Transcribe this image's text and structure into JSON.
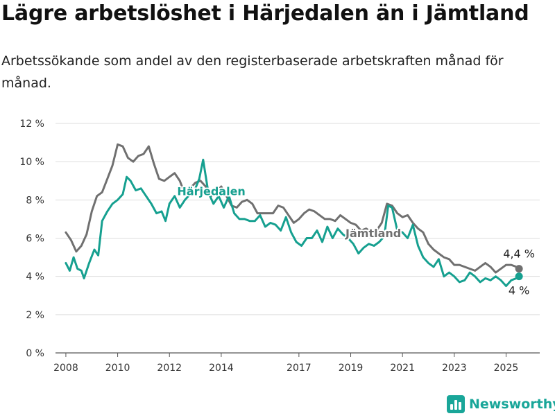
{
  "header": {
    "title": "Lägre arbetslöshet i Härjedalen än i Jämtland",
    "subtitle": "Arbetssökande som andel av den registerbaserade arbetskraften månad för månad."
  },
  "brand": {
    "name": "Newsworthy",
    "icon": "bar-chart-icon",
    "color": "#19a699"
  },
  "chart_data": {
    "type": "line",
    "title": "Lägre arbetslöshet i Härjedalen än i Jämtland",
    "subtitle": "Arbetssökande som andel av den registerbaserade arbetskraften månad för månad.",
    "xlabel": "",
    "ylabel": "",
    "xlim": [
      2007.6,
      2026.3
    ],
    "ylim": [
      0,
      12
    ],
    "x_ticks": [
      2008,
      2010,
      2012,
      2014,
      2017,
      2019,
      2021,
      2023,
      2025
    ],
    "x_tick_labels": [
      "2008",
      "2010",
      "2012",
      "2014",
      "2017",
      "2019",
      "2021",
      "2023",
      "2025"
    ],
    "y_ticks": [
      0,
      2,
      4,
      6,
      8,
      10,
      12
    ],
    "y_tick_labels": [
      "0 %",
      "2 %",
      "4 %",
      "6 %",
      "8 %",
      "10 %",
      "12 %"
    ],
    "grid": true,
    "legend": "inline labels",
    "series": [
      {
        "name": "Jämtland",
        "color": "#707070",
        "end_label": "4,4 %",
        "points": [
          [
            2008.0,
            6.3
          ],
          [
            2008.2,
            5.9
          ],
          [
            2008.4,
            5.3
          ],
          [
            2008.6,
            5.6
          ],
          [
            2008.8,
            6.2
          ],
          [
            2009.0,
            7.4
          ],
          [
            2009.2,
            8.2
          ],
          [
            2009.4,
            8.4
          ],
          [
            2009.6,
            9.1
          ],
          [
            2009.8,
            9.8
          ],
          [
            2010.0,
            10.9
          ],
          [
            2010.2,
            10.8
          ],
          [
            2010.4,
            10.2
          ],
          [
            2010.6,
            10.0
          ],
          [
            2010.8,
            10.3
          ],
          [
            2011.0,
            10.4
          ],
          [
            2011.2,
            10.8
          ],
          [
            2011.4,
            9.9
          ],
          [
            2011.6,
            9.1
          ],
          [
            2011.8,
            9.0
          ],
          [
            2012.0,
            9.2
          ],
          [
            2012.2,
            9.4
          ],
          [
            2012.4,
            9.0
          ],
          [
            2012.6,
            8.3
          ],
          [
            2012.8,
            8.6
          ],
          [
            2013.0,
            8.9
          ],
          [
            2013.2,
            9.0
          ],
          [
            2013.4,
            8.7
          ],
          [
            2013.6,
            8.2
          ],
          [
            2013.8,
            8.4
          ],
          [
            2014.0,
            8.7
          ],
          [
            2014.2,
            8.2
          ],
          [
            2014.4,
            7.7
          ],
          [
            2014.6,
            7.6
          ],
          [
            2014.8,
            7.9
          ],
          [
            2015.0,
            8.0
          ],
          [
            2015.2,
            7.8
          ],
          [
            2015.4,
            7.3
          ],
          [
            2015.6,
            7.3
          ],
          [
            2015.8,
            7.3
          ],
          [
            2016.0,
            7.3
          ],
          [
            2016.2,
            7.7
          ],
          [
            2016.4,
            7.6
          ],
          [
            2016.6,
            7.2
          ],
          [
            2016.8,
            6.8
          ],
          [
            2017.0,
            7.0
          ],
          [
            2017.2,
            7.3
          ],
          [
            2017.4,
            7.5
          ],
          [
            2017.6,
            7.4
          ],
          [
            2017.8,
            7.2
          ],
          [
            2018.0,
            7.0
          ],
          [
            2018.2,
            7.0
          ],
          [
            2018.4,
            6.9
          ],
          [
            2018.6,
            7.2
          ],
          [
            2018.8,
            7.0
          ],
          [
            2019.0,
            6.8
          ],
          [
            2019.2,
            6.7
          ],
          [
            2019.4,
            6.4
          ],
          [
            2019.6,
            6.5
          ],
          [
            2019.8,
            6.3
          ],
          [
            2020.0,
            6.4
          ],
          [
            2020.2,
            6.8
          ],
          [
            2020.4,
            7.8
          ],
          [
            2020.6,
            7.7
          ],
          [
            2020.8,
            7.3
          ],
          [
            2021.0,
            7.1
          ],
          [
            2021.2,
            7.2
          ],
          [
            2021.4,
            6.8
          ],
          [
            2021.6,
            6.5
          ],
          [
            2021.8,
            6.3
          ],
          [
            2022.0,
            5.7
          ],
          [
            2022.2,
            5.4
          ],
          [
            2022.4,
            5.2
          ],
          [
            2022.6,
            5.0
          ],
          [
            2022.8,
            4.9
          ],
          [
            2023.0,
            4.6
          ],
          [
            2023.2,
            4.6
          ],
          [
            2023.4,
            4.5
          ],
          [
            2023.6,
            4.4
          ],
          [
            2023.8,
            4.3
          ],
          [
            2024.0,
            4.5
          ],
          [
            2024.2,
            4.7
          ],
          [
            2024.4,
            4.5
          ],
          [
            2024.6,
            4.2
          ],
          [
            2024.8,
            4.4
          ],
          [
            2025.0,
            4.6
          ],
          [
            2025.2,
            4.6
          ],
          [
            2025.4,
            4.5
          ],
          [
            2025.5,
            4.4
          ]
        ]
      },
      {
        "name": "Härjedalen",
        "color": "#16a090",
        "end_label": "4 %",
        "points": [
          [
            2008.0,
            4.7
          ],
          [
            2008.15,
            4.3
          ],
          [
            2008.3,
            5.0
          ],
          [
            2008.45,
            4.4
          ],
          [
            2008.6,
            4.3
          ],
          [
            2008.7,
            3.9
          ],
          [
            2008.9,
            4.7
          ],
          [
            2009.1,
            5.4
          ],
          [
            2009.25,
            5.1
          ],
          [
            2009.4,
            6.9
          ],
          [
            2009.6,
            7.4
          ],
          [
            2009.8,
            7.8
          ],
          [
            2010.0,
            8.0
          ],
          [
            2010.2,
            8.3
          ],
          [
            2010.35,
            9.2
          ],
          [
            2010.5,
            9.0
          ],
          [
            2010.7,
            8.5
          ],
          [
            2010.9,
            8.6
          ],
          [
            2011.1,
            8.2
          ],
          [
            2011.3,
            7.8
          ],
          [
            2011.5,
            7.3
          ],
          [
            2011.7,
            7.4
          ],
          [
            2011.85,
            6.9
          ],
          [
            2012.0,
            7.8
          ],
          [
            2012.2,
            8.2
          ],
          [
            2012.4,
            7.6
          ],
          [
            2012.6,
            8.0
          ],
          [
            2012.8,
            8.3
          ],
          [
            2013.0,
            8.6
          ],
          [
            2013.15,
            9.1
          ],
          [
            2013.3,
            10.1
          ],
          [
            2013.5,
            8.4
          ],
          [
            2013.7,
            7.8
          ],
          [
            2013.9,
            8.2
          ],
          [
            2014.1,
            7.6
          ],
          [
            2014.3,
            8.2
          ],
          [
            2014.5,
            7.3
          ],
          [
            2014.7,
            7.0
          ],
          [
            2014.9,
            7.0
          ],
          [
            2015.1,
            6.9
          ],
          [
            2015.3,
            6.9
          ],
          [
            2015.5,
            7.2
          ],
          [
            2015.7,
            6.6
          ],
          [
            2015.9,
            6.8
          ],
          [
            2016.1,
            6.7
          ],
          [
            2016.3,
            6.4
          ],
          [
            2016.5,
            7.1
          ],
          [
            2016.7,
            6.3
          ],
          [
            2016.9,
            5.8
          ],
          [
            2017.1,
            5.6
          ],
          [
            2017.3,
            6.0
          ],
          [
            2017.5,
            6.0
          ],
          [
            2017.7,
            6.4
          ],
          [
            2017.9,
            5.8
          ],
          [
            2018.1,
            6.6
          ],
          [
            2018.3,
            6.0
          ],
          [
            2018.5,
            6.5
          ],
          [
            2018.7,
            6.2
          ],
          [
            2018.9,
            6.0
          ],
          [
            2019.1,
            5.7
          ],
          [
            2019.3,
            5.2
          ],
          [
            2019.5,
            5.5
          ],
          [
            2019.7,
            5.7
          ],
          [
            2019.9,
            5.6
          ],
          [
            2020.1,
            5.8
          ],
          [
            2020.3,
            6.1
          ],
          [
            2020.45,
            7.7
          ],
          [
            2020.6,
            7.6
          ],
          [
            2020.8,
            6.4
          ],
          [
            2021.0,
            6.3
          ],
          [
            2021.2,
            6.0
          ],
          [
            2021.4,
            6.7
          ],
          [
            2021.6,
            5.6
          ],
          [
            2021.8,
            5.0
          ],
          [
            2022.0,
            4.7
          ],
          [
            2022.2,
            4.5
          ],
          [
            2022.4,
            4.9
          ],
          [
            2022.6,
            4.0
          ],
          [
            2022.8,
            4.2
          ],
          [
            2023.0,
            4.0
          ],
          [
            2023.2,
            3.7
          ],
          [
            2023.4,
            3.8
          ],
          [
            2023.6,
            4.2
          ],
          [
            2023.8,
            4.0
          ],
          [
            2024.0,
            3.7
          ],
          [
            2024.2,
            3.9
          ],
          [
            2024.4,
            3.8
          ],
          [
            2024.6,
            4.0
          ],
          [
            2024.8,
            3.8
          ],
          [
            2025.0,
            3.5
          ],
          [
            2025.2,
            3.8
          ],
          [
            2025.4,
            3.9
          ],
          [
            2025.5,
            4.0
          ]
        ]
      }
    ]
  }
}
